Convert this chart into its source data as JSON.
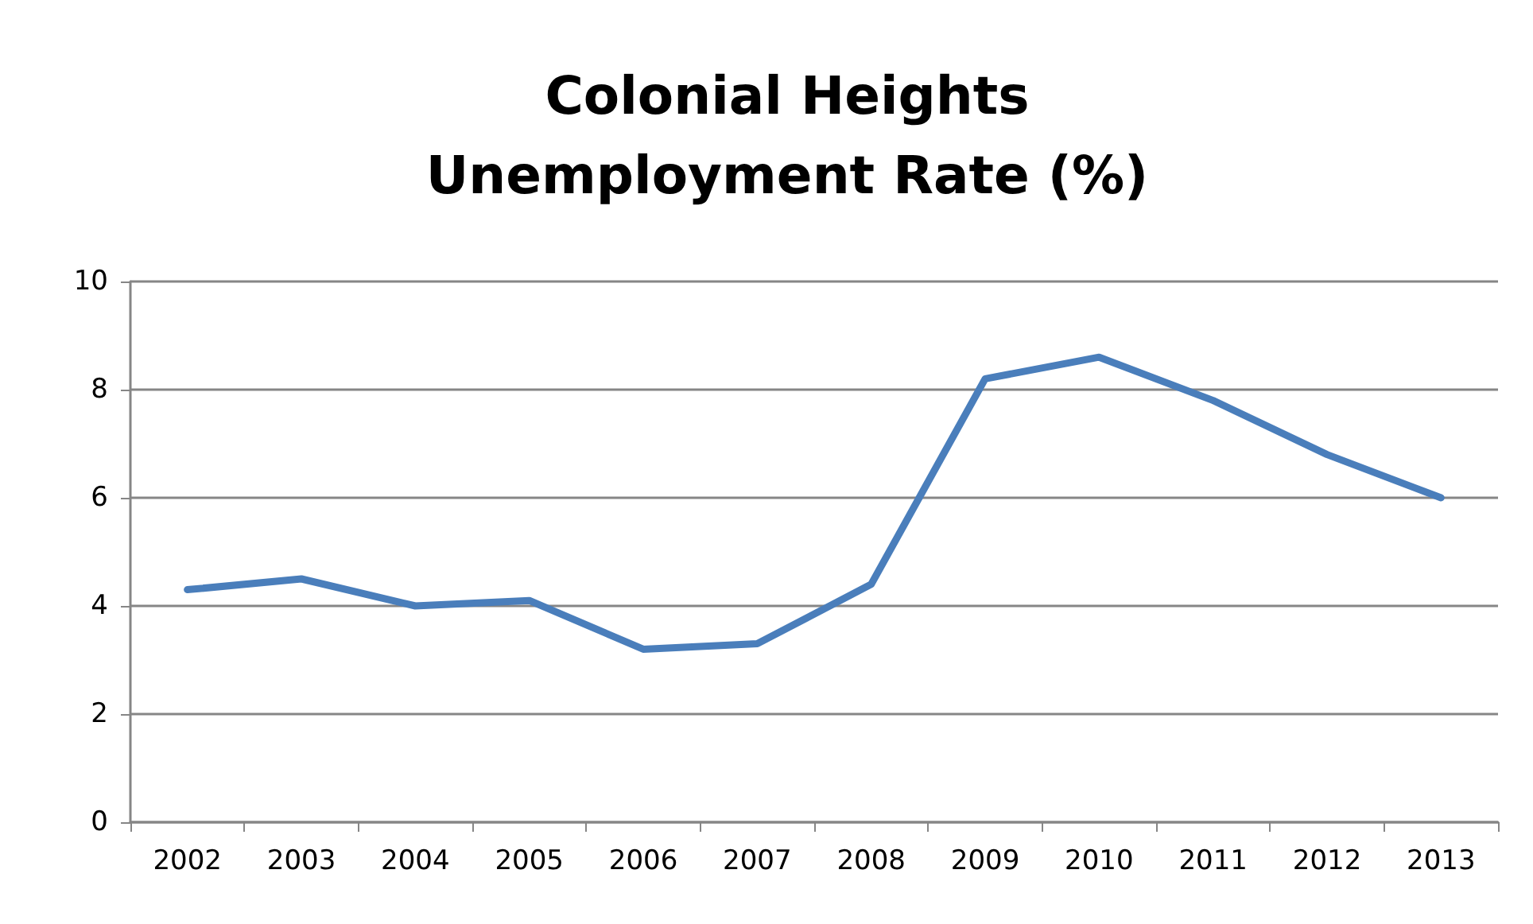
{
  "chart_data": {
    "type": "line",
    "title": "Colonial Heights\nUnemployment Rate (%)",
    "categories": [
      "2002",
      "2003",
      "2004",
      "2005",
      "2006",
      "2007",
      "2008",
      "2009",
      "2010",
      "2011",
      "2012",
      "2013"
    ],
    "series": [
      {
        "color": "#4a7ebb",
        "values": [
          4.3,
          4.5,
          4.0,
          4.1,
          3.2,
          3.3,
          4.4,
          8.2,
          8.6,
          7.8,
          6.8,
          6.0
        ]
      }
    ],
    "ylim": [
      0,
      10
    ],
    "yticks": [
      0,
      2,
      4,
      6,
      8,
      10
    ],
    "grid": "y",
    "marker": "none",
    "line_style": "solid"
  }
}
